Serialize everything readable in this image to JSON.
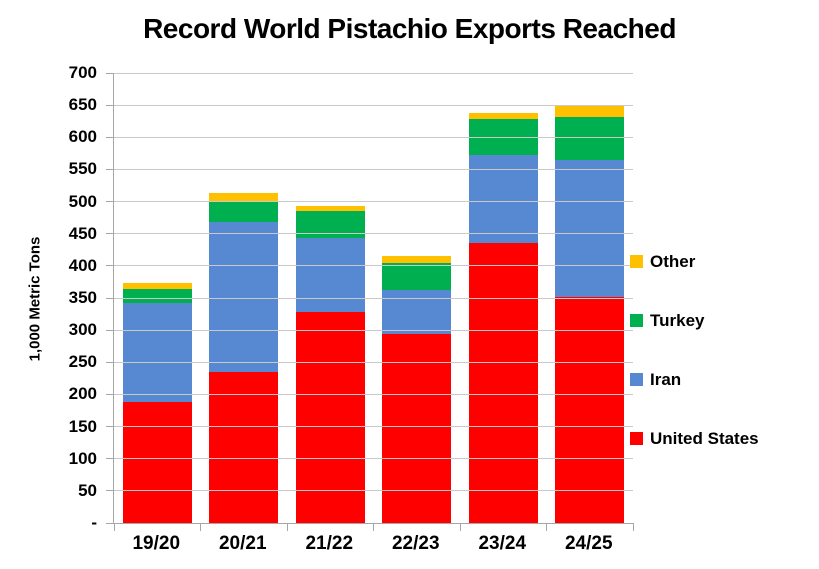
{
  "title": "Record World Pistachio Exports Reached",
  "chart_data": {
    "type": "bar",
    "subtype": "stacked",
    "title": "Record World Pistachio Exports Reached",
    "xlabel": "",
    "ylabel": "1,000 Metric Tons",
    "categories": [
      "19/20",
      "20/21",
      "21/22",
      "22/23",
      "23/24",
      "24/25"
    ],
    "series": [
      {
        "name": "United States",
        "color": "#FF0000",
        "values": [
          188,
          235,
          328,
          294,
          436,
          352
        ]
      },
      {
        "name": "Iran",
        "color": "#5689D2",
        "values": [
          154,
          233,
          116,
          69,
          137,
          213
        ]
      },
      {
        "name": "Turkey",
        "color": "#00B050",
        "values": [
          22,
          32,
          41,
          42,
          55,
          66
        ]
      },
      {
        "name": "Other",
        "color": "#FFC000",
        "values": [
          10,
          13,
          8,
          11,
          10,
          18
        ]
      }
    ],
    "stack_totals": [
      374,
      513,
      493,
      416,
      638,
      649
    ],
    "stack_order": "bottom-to-top",
    "ylim": [
      0,
      700
    ],
    "ytick_step": 50,
    "ytick_labels": [
      "-",
      "50",
      "100",
      "150",
      "200",
      "250",
      "300",
      "350",
      "400",
      "450",
      "500",
      "550",
      "600",
      "650",
      "700"
    ],
    "grid": true,
    "gridline_color": "#C9C9C9",
    "axis_color": "#A6A6A6",
    "text_color": "#000000",
    "background_color": "#FFFFFF",
    "legend_position": "right",
    "legend_order": [
      "Other",
      "Turkey",
      "Iran",
      "United States"
    ]
  }
}
